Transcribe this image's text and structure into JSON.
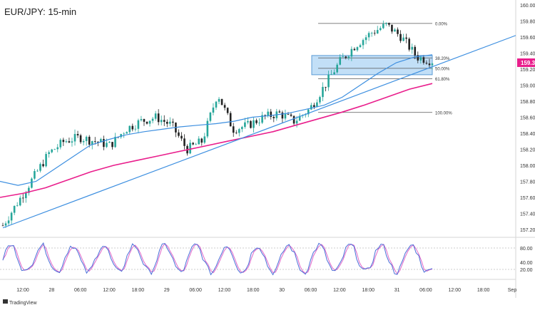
{
  "title": "EUR/JPY: 15-min",
  "watermark": "TradingView",
  "price_axis": {
    "ticks": [
      "160.000",
      "159.800",
      "159.600",
      "159.400",
      "159.200",
      "159.000",
      "158.800",
      "158.600",
      "158.400",
      "158.200",
      "158.000",
      "157.800",
      "157.600",
      "157.400",
      "157.200"
    ],
    "current_price": "159.30",
    "current_color": "#e91e8c"
  },
  "time_axis": [
    "12:00",
    "28",
    "06:00",
    "12:00",
    "18:00",
    "29",
    "06:00",
    "12:00",
    "18:00",
    "30",
    "06:00",
    "12:00",
    "18:00",
    "31",
    "06:00",
    "12:00",
    "18:00",
    "Sep"
  ],
  "fibonacci": {
    "levels": [
      {
        "label": "0.00%",
        "price": 159.77
      },
      {
        "label": "38.20%",
        "price": 159.34
      },
      {
        "label": "50.00%",
        "price": 159.21
      },
      {
        "label": "61.80%",
        "price": 159.08
      },
      {
        "label": "100.00%",
        "price": 158.66
      }
    ]
  },
  "zone": {
    "top": 159.37,
    "bottom": 159.13,
    "color": "#90c4f0"
  },
  "stoch_axis": {
    "ticks": [
      "80.00",
      "40.00",
      "20.00"
    ],
    "values": [
      80,
      40,
      20
    ]
  },
  "colors": {
    "ma_fast": "#3d8fe0",
    "ma_slow": "#e91e8c",
    "trendline": "#3d8fe0",
    "up": "#26a69a",
    "down": "#222222",
    "stoch_k": "#4a6fd8",
    "stoch_d": "#e066c8"
  },
  "chart_data": {
    "type": "line",
    "series": [
      {
        "values": [
          157.25,
          157.55,
          157.85,
          158.15,
          158.3,
          158.35,
          158.3,
          158.25,
          158.45,
          158.55,
          158.6,
          158.5,
          158.2,
          158.3,
          158.9,
          158.45,
          158.5,
          158.6,
          158.65,
          158.55,
          158.7,
          159.0,
          159.3,
          159.5,
          159.65,
          159.75,
          159.6,
          159.35,
          159.3
        ]
      },
      {
        "values": [
          157.8,
          157.75,
          157.8,
          157.95,
          158.1,
          158.25,
          158.32,
          158.38,
          158.42,
          158.45,
          158.48,
          158.5,
          158.52,
          158.55,
          158.6,
          158.62,
          158.65,
          158.7,
          158.75,
          158.85,
          159.0,
          159.15,
          159.28,
          159.35,
          159.38
        ]
      },
      {
        "values": [
          157.6,
          157.65,
          157.72,
          157.82,
          157.92,
          158.0,
          158.06,
          158.12,
          158.18,
          158.24,
          158.3,
          158.36,
          158.42,
          158.5,
          158.58,
          158.66,
          158.75,
          158.85,
          158.95,
          159.02
        ]
      }
    ],
    "ylim": [
      157.2,
      160.0
    ],
    "stochastic_ylim": [
      0,
      100
    ]
  }
}
